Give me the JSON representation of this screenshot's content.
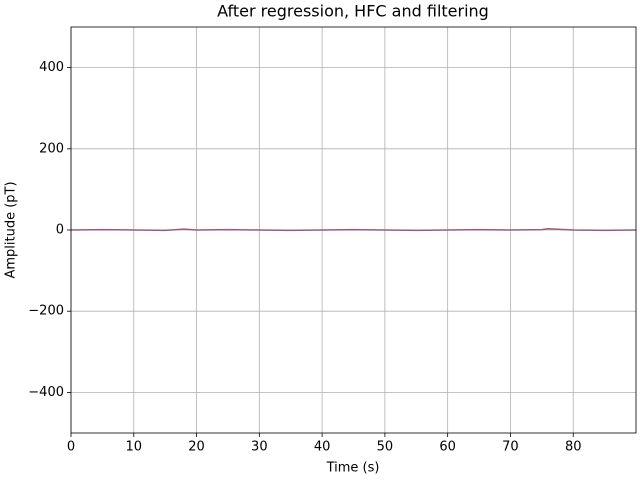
{
  "chart_data": {
    "type": "line",
    "title": "After regression, HFC and filtering",
    "xlabel": "Time (s)",
    "ylabel": "Amplitude (pT)",
    "x": [
      0,
      5,
      10,
      15,
      18,
      20,
      25,
      30,
      35,
      40,
      45,
      50,
      55,
      60,
      65,
      70,
      75,
      76,
      80,
      85,
      90
    ],
    "series": [
      {
        "color": "#9a5a7e",
        "values": [
          0,
          1,
          0,
          -1,
          2,
          0,
          1,
          0,
          -1,
          0,
          1,
          0,
          -1,
          0,
          1,
          0,
          1,
          3,
          0,
          -1,
          0
        ]
      }
    ],
    "xlim": [
      0,
      90
    ],
    "xticks": [
      0,
      10,
      20,
      30,
      40,
      50,
      60,
      70,
      80
    ],
    "ylim": [
      -500,
      500
    ],
    "yticks": [
      {
        "value": -400,
        "label": "−400"
      },
      {
        "value": -200,
        "label": "−200"
      },
      0,
      200,
      400
    ],
    "grid": true
  }
}
